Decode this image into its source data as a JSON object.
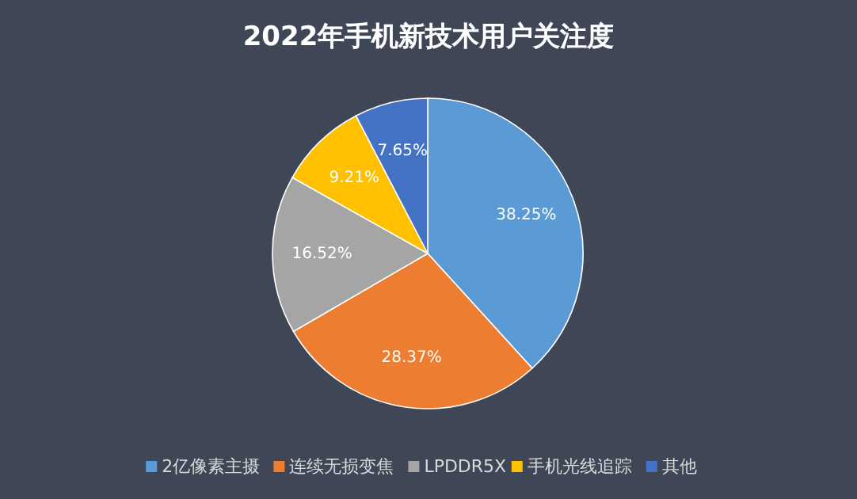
{
  "chart_data": {
    "type": "pie",
    "title": "2022年手机新技术用户关注度",
    "categories": [
      "2亿像素主摄",
      "连续无损变焦",
      "LPDDR5X",
      "手机光线追踪",
      "其他"
    ],
    "values": [
      38.25,
      28.37,
      16.52,
      9.21,
      7.65
    ],
    "value_labels": [
      "38.25%",
      "28.37%",
      "16.52%",
      "9.21%",
      "7.65%"
    ],
    "colors": [
      "#5b9bd5",
      "#ed7d31",
      "#a5a5a5",
      "#ffc000",
      "#4472c4"
    ],
    "legend": "bottom"
  }
}
